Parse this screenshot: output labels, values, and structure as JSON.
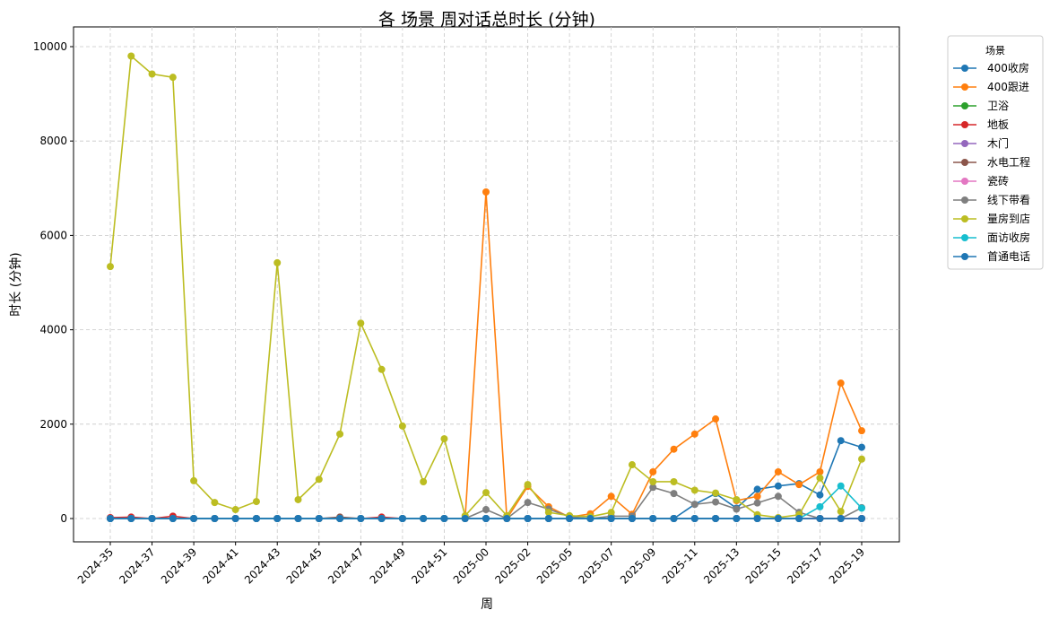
{
  "chart_data": {
    "type": "line",
    "title": "各 场景 周对话总时长 (分钟)",
    "xlabel": "周",
    "ylabel": "时长 (分钟)",
    "legend_title": "场景",
    "legend": "outside right",
    "grid": true,
    "categories": [
      "2024-35",
      null,
      "2024-37",
      null,
      "2024-39",
      null,
      "2024-41",
      null,
      "2024-43",
      null,
      "2024-45",
      null,
      "2024-47",
      null,
      "2024-49",
      null,
      "2024-51",
      null,
      "2025-00",
      null,
      "2025-02",
      null,
      "2025-05",
      null,
      "2025-07",
      null,
      "2025-09",
      null,
      "2025-11",
      null,
      "2025-13",
      null,
      "2025-15",
      null,
      "2025-17",
      null,
      "2025-19"
    ],
    "ylim": [
      -494,
      10418
    ],
    "yticks": [
      0,
      2000,
      4000,
      6000,
      8000,
      10000
    ],
    "series": [
      {
        "name": "400收房",
        "color": "#1f77b4",
        "values": [
          0,
          0,
          0,
          0,
          0,
          0,
          0,
          0,
          0,
          0,
          0,
          0,
          0,
          0,
          0,
          0,
          0,
          0,
          0,
          0,
          0,
          0,
          0,
          0,
          0,
          0,
          0,
          0,
          300,
          530,
          220,
          620,
          690,
          740,
          500,
          1650,
          1510
        ]
      },
      {
        "name": "400跟进",
        "color": "#ff7f0e",
        "values": [
          0,
          0,
          0,
          0,
          0,
          0,
          0,
          0,
          0,
          0,
          0,
          0,
          0,
          0,
          0,
          0,
          0,
          0,
          6920,
          0,
          680,
          250,
          30,
          100,
          470,
          90,
          990,
          1470,
          1790,
          2110,
          380,
          470,
          990,
          720,
          990,
          2870,
          1860
        ]
      },
      {
        "name": "卫浴",
        "color": "#2ca02c",
        "values": [
          0,
          0,
          0,
          0,
          0,
          0,
          0,
          0,
          0,
          0,
          0,
          0,
          0,
          0,
          0,
          0,
          0,
          0,
          0,
          0,
          0,
          0,
          0,
          0,
          0,
          0,
          0,
          0,
          0,
          0,
          0,
          0,
          0,
          0,
          0,
          0,
          0
        ]
      },
      {
        "name": "地板",
        "color": "#d62728",
        "values": [
          20,
          30,
          0,
          50,
          0,
          0,
          0,
          0,
          0,
          0,
          0,
          0,
          0,
          30,
          0,
          0,
          0,
          0,
          0,
          0,
          0,
          0,
          0,
          0,
          0,
          0,
          0,
          0,
          0,
          0,
          0,
          0,
          0,
          0,
          0,
          0,
          0
        ]
      },
      {
        "name": "木门",
        "color": "#9467bd",
        "values": [
          0,
          0,
          0,
          0,
          0,
          0,
          0,
          0,
          0,
          0,
          0,
          0,
          0,
          0,
          0,
          0,
          0,
          0,
          0,
          0,
          0,
          0,
          0,
          0,
          0,
          0,
          0,
          0,
          0,
          0,
          0,
          0,
          0,
          0,
          0,
          0,
          0
        ]
      },
      {
        "name": "水电工程",
        "color": "#8c564b",
        "values": [
          0,
          0,
          0,
          0,
          0,
          0,
          0,
          0,
          0,
          0,
          0,
          30,
          0,
          0,
          0,
          0,
          0,
          0,
          0,
          0,
          0,
          0,
          0,
          0,
          0,
          0,
          0,
          0,
          0,
          0,
          0,
          0,
          0,
          0,
          0,
          0,
          0
        ]
      },
      {
        "name": "瓷砖",
        "color": "#e377c2",
        "values": [
          0,
          0,
          0,
          0,
          0,
          0,
          0,
          0,
          0,
          0,
          0,
          0,
          0,
          0,
          0,
          0,
          0,
          0,
          0,
          0,
          0,
          0,
          0,
          0,
          0,
          0,
          0,
          0,
          0,
          0,
          0,
          0,
          0,
          0,
          0,
          0,
          0
        ]
      },
      {
        "name": "线下带看",
        "color": "#7f7f7f",
        "values": [
          0,
          0,
          0,
          0,
          0,
          0,
          0,
          0,
          0,
          0,
          0,
          0,
          0,
          0,
          0,
          0,
          0,
          0,
          190,
          0,
          340,
          200,
          40,
          0,
          50,
          50,
          660,
          530,
          300,
          350,
          200,
          330,
          470,
          130,
          0,
          0,
          230
        ]
      },
      {
        "name": "量房到店",
        "color": "#bcbd22",
        "values": [
          5340,
          9800,
          9420,
          9350,
          800,
          340,
          190,
          360,
          5420,
          400,
          830,
          1790,
          4140,
          3160,
          1960,
          780,
          1690,
          60,
          550,
          60,
          720,
          130,
          60,
          40,
          130,
          1140,
          780,
          780,
          600,
          540,
          400,
          80,
          20,
          80,
          860,
          150,
          1260
        ]
      },
      {
        "name": "面访收房",
        "color": "#17becf",
        "values": [
          0,
          0,
          0,
          0,
          0,
          0,
          0,
          0,
          0,
          0,
          0,
          0,
          0,
          0,
          0,
          0,
          0,
          0,
          0,
          0,
          0,
          0,
          0,
          0,
          0,
          0,
          0,
          0,
          0,
          0,
          0,
          0,
          0,
          0,
          250,
          690,
          220
        ]
      },
      {
        "name": "首通电话",
        "color": "#1f77b4",
        "values": [
          0,
          0,
          0,
          0,
          0,
          0,
          0,
          0,
          0,
          0,
          0,
          0,
          0,
          0,
          0,
          0,
          0,
          0,
          0,
          0,
          0,
          0,
          0,
          0,
          0,
          0,
          0,
          0,
          0,
          0,
          0,
          0,
          0,
          0,
          0,
          0,
          0
        ]
      }
    ]
  }
}
